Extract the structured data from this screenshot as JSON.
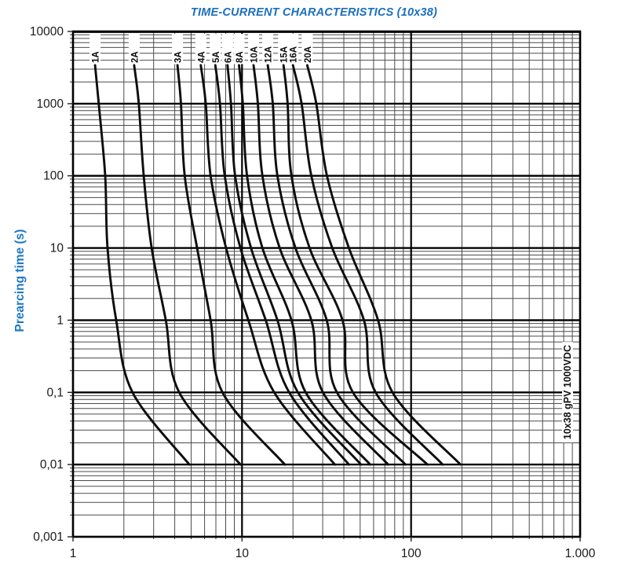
{
  "title": "TIME-CURRENT CHARACTERISTICS (10x38)",
  "side_label": "10x38 gPV 1000VDC",
  "y_axis": {
    "label": "Prearcing time (s)",
    "ticks": [
      "10000",
      "1000",
      "100",
      "10",
      "1",
      "0,1",
      "0,01",
      "0,001"
    ]
  },
  "x_axis": {
    "ticks": [
      "1",
      "10",
      "100",
      "1.000"
    ]
  },
  "colors": {
    "title_blue": "#1b6fbe",
    "axis_label_blue": "#1d78c4",
    "curve_black": "#0d0d0d",
    "grid_major": "#000000",
    "grid_minor": "#4b4b4b"
  },
  "chart_data": {
    "type": "line",
    "title": "TIME-CURRENT CHARACTERISTICS (10x38)",
    "xlabel": "",
    "ylabel": "Prearcing time (s)",
    "x_scale": "log",
    "y_scale": "log",
    "xlim": [
      1,
      1000
    ],
    "ylim": [
      0.001,
      10000
    ],
    "grid": true,
    "legend_position": "labels-above-curves",
    "times_s": [
      3400,
      1000,
      100,
      10,
      1,
      0.1,
      0.01
    ],
    "series": [
      {
        "name": "1A",
        "currents_A": [
          1.35,
          1.42,
          1.55,
          1.6,
          1.8,
          2.25,
          4.88
        ]
      },
      {
        "name": "2A",
        "currents_A": [
          2.3,
          2.45,
          2.62,
          2.92,
          3.54,
          4.25,
          9.79
        ]
      },
      {
        "name": "3A",
        "currents_A": [
          4.15,
          4.35,
          4.58,
          5.42,
          6.52,
          7.66,
          17.9
        ]
      },
      {
        "name": "4A",
        "currents_A": [
          5.7,
          6.1,
          6.52,
          8.05,
          10.9,
          15.5,
          35.4
        ]
      },
      {
        "name": "5A",
        "currents_A": [
          6.95,
          7.4,
          7.9,
          9.79,
          13.8,
          19.0,
          42.9
        ]
      },
      {
        "name": "6A",
        "currents_A": [
          8.2,
          8.6,
          9.1,
          11.3,
          16.2,
          21.4,
          50.5
        ]
      },
      {
        "name": "8A",
        "currents_A": [
          9.6,
          10.1,
          10.7,
          13.2,
          19.6,
          23.8,
          57.3
        ]
      },
      {
        "name": "10A",
        "currents_A": [
          11.7,
          12.4,
          13.2,
          16.7,
          25.7,
          30.1,
          73.2
        ]
      },
      {
        "name": "12A",
        "currents_A": [
          14.2,
          15.2,
          16.2,
          20.7,
          31.7,
          36.4,
          92.6
        ]
      },
      {
        "name": "15A",
        "currents_A": [
          17.6,
          18.6,
          19.6,
          25.1,
          39.3,
          45.3,
          125
        ]
      },
      {
        "name": "16A",
        "currents_A": [
          20.0,
          22.5,
          25.7,
          34.2,
          52.6,
          61.7,
          154
        ]
      },
      {
        "name": "20A",
        "currents_A": [
          24.3,
          27.5,
          31.8,
          42.9,
          63.8,
          77.6,
          196
        ]
      }
    ]
  }
}
